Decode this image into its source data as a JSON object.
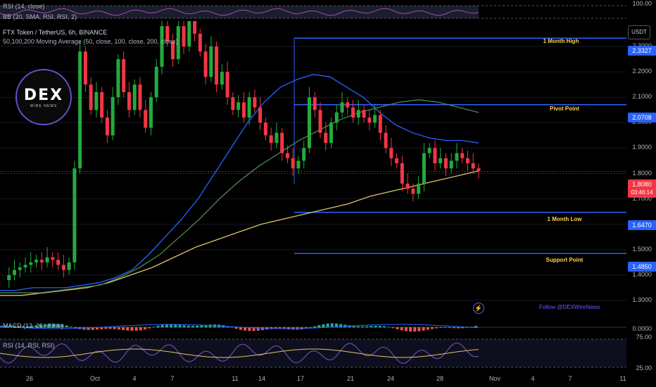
{
  "chart_title": "FTX Token / TetherUS, 6h, BINANCE",
  "ma_legend": "50,100,200 Moving Average (50, close, 100, close, 200, close)",
  "rsi_top_label": "RSI (14, close)",
  "bb_label": "BB (20, SMA, RSI, RSI, 2)",
  "macd_label": "MACD (12, 26, close)",
  "rsi_bottom_label": "RSI (14, RSI, RSI)",
  "currency_button": "USDT",
  "logo": {
    "main": "DEX",
    "sub": "WIRE NEWS"
  },
  "follow_text": "Follow @DEXWireNews",
  "current_price": {
    "label": "1.8080",
    "time": "03:46:14"
  },
  "colors": {
    "up": "#22ab3b",
    "down": "#f23645",
    "ma50": "#2962ff",
    "ma100": "#4c8b4f",
    "ma200": "#e0c36b",
    "levels": "#2962ff",
    "level_text": "#ffd54a"
  },
  "chart_data": {
    "type": "candlestick",
    "title": "FTX Token / TetherUS, 6h, BINANCE",
    "ylim": [
      1.3,
      2.4
    ],
    "y_ticks": [
      "2.3000",
      "2.2000",
      "2.1000",
      "2.0000",
      "1.9000",
      "1.8000",
      "1.7000",
      "1.6000",
      "1.5000",
      "1.4000",
      "1.3000"
    ],
    "x_ticks": [
      "26",
      "Oct",
      "4",
      "7",
      "11",
      "14",
      "17",
      "21",
      "24",
      "28",
      "Nov",
      "4",
      "7",
      "11"
    ],
    "levels": [
      {
        "name": "1 Month High",
        "value": 2.3327,
        "label": "2.3327"
      },
      {
        "name": "Pivot Point",
        "value": 2.0708,
        "label": "2.0708"
      },
      {
        "name": "1 Month Low",
        "value": 1.647,
        "label": "1.6470"
      },
      {
        "name": "Support Point",
        "value": 1.485,
        "label": "1.4850"
      }
    ],
    "rsi_top_ticks": [
      "100.00"
    ],
    "macd_ticks": [
      "0.0000"
    ],
    "rsi_bottom_ticks": [
      "75.00",
      "25.00"
    ],
    "price_path": [
      1.38,
      1.4,
      1.42,
      1.43,
      1.44,
      1.45,
      1.46,
      1.45,
      1.47,
      1.46,
      1.44,
      1.42,
      1.45,
      1.82,
      2.28,
      2.15,
      2.05,
      2.12,
      2.02,
      1.95,
      2.1,
      2.25,
      2.12,
      2.05,
      2.15,
      2.05,
      1.98,
      2.1,
      2.22,
      2.38,
      2.32,
      2.25,
      2.38,
      2.3,
      2.4,
      2.35,
      2.28,
      2.18,
      2.3,
      2.15,
      2.2,
      2.1,
      2.05,
      2.08,
      2.02,
      2.1,
      2.06,
      2.0,
      1.95,
      1.92,
      1.96,
      1.88,
      1.86,
      1.82,
      1.85,
      1.9,
      2.1,
      2.05,
      1.96,
      1.92,
      2.0,
      2.04,
      2.08,
      2.06,
      2.02,
      2.05,
      2.02,
      2.0,
      2.03,
      1.96,
      1.9,
      1.86,
      1.84,
      1.76,
      1.74,
      1.72,
      1.76,
      1.88,
      1.9,
      1.84,
      1.86,
      1.82,
      1.85,
      1.88,
      1.86,
      1.84,
      1.82,
      1.81
    ],
    "ma50": [
      1.34,
      1.34,
      1.35,
      1.35,
      1.35,
      1.36,
      1.37,
      1.39,
      1.42,
      1.48,
      1.55,
      1.62,
      1.7,
      1.8,
      1.9,
      2.0,
      2.08,
      2.14,
      2.17,
      2.19,
      2.18,
      2.14,
      2.1,
      2.04,
      1.99,
      1.96,
      1.94,
      1.93,
      1.93,
      1.92
    ],
    "ma100": [
      1.33,
      1.33,
      1.33,
      1.34,
      1.35,
      1.36,
      1.39,
      1.43,
      1.48,
      1.55,
      1.62,
      1.7,
      1.77,
      1.83,
      1.88,
      1.93,
      1.97,
      2.01,
      2.04,
      2.06,
      2.08,
      2.09,
      2.08,
      2.06,
      2.04
    ],
    "ma200": [
      1.32,
      1.32,
      1.33,
      1.34,
      1.35,
      1.37,
      1.4,
      1.43,
      1.47,
      1.51,
      1.54,
      1.57,
      1.6,
      1.62,
      1.64,
      1.66,
      1.68,
      1.71,
      1.73,
      1.75,
      1.77,
      1.79,
      1.81
    ]
  }
}
